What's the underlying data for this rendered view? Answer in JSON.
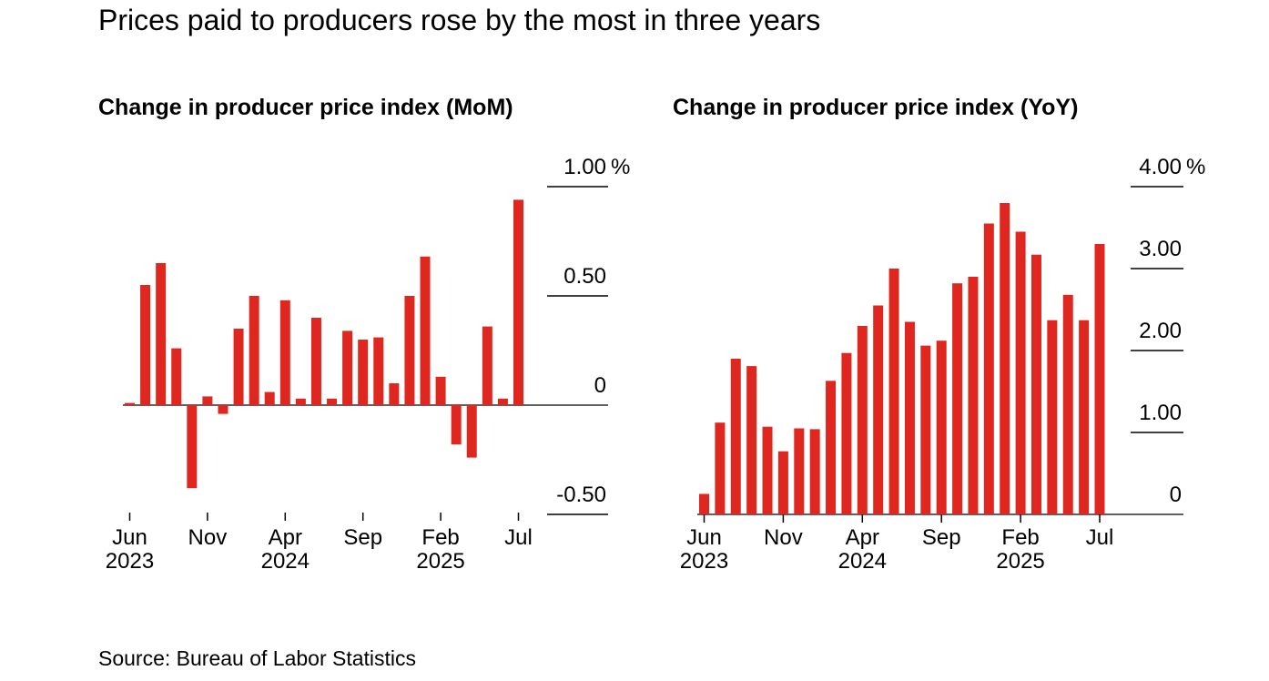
{
  "title": "Prices paid to producers rose by the most in three years",
  "source": "Source: Bureau of Labor Statistics",
  "colors": {
    "bar": "#e0271f",
    "axis": "#000000"
  },
  "chart_data": [
    {
      "type": "bar",
      "title": "Change in producer price index (MoM)",
      "unit": "%",
      "ylim": [
        -0.5,
        1.0
      ],
      "y_ticks": [
        {
          "value": 1.0,
          "label": "1.00"
        },
        {
          "value": 0.5,
          "label": "0.50"
        },
        {
          "value": 0,
          "label": "0"
        },
        {
          "value": -0.5,
          "label": "-0.50"
        }
      ],
      "categories": [
        "Jun 2023",
        "Jul 2023",
        "Aug 2023",
        "Sep 2023",
        "Oct 2023",
        "Nov 2023",
        "Dec 2023",
        "Jan 2024",
        "Feb 2024",
        "Mar 2024",
        "Apr 2024",
        "May 2024",
        "Jun 2024",
        "Jul 2024",
        "Aug 2024",
        "Sep 2024",
        "Oct 2024",
        "Nov 2024",
        "Dec 2024",
        "Jan 2025",
        "Feb 2025",
        "Mar 2025",
        "Apr 2025",
        "May 2025",
        "Jun 2025",
        "Jul 2025"
      ],
      "values": [
        0.01,
        0.55,
        0.65,
        0.26,
        -0.38,
        0.04,
        -0.04,
        0.35,
        0.5,
        0.06,
        0.48,
        0.03,
        0.4,
        0.03,
        0.34,
        0.3,
        0.31,
        0.1,
        0.5,
        0.68,
        0.13,
        -0.18,
        -0.24,
        0.36,
        0.03,
        0.94
      ],
      "x_ticks": [
        {
          "index": 0,
          "month": "Jun",
          "year": "2023"
        },
        {
          "index": 5,
          "month": "Nov",
          "year": ""
        },
        {
          "index": 10,
          "month": "Apr",
          "year": "2024"
        },
        {
          "index": 15,
          "month": "Sep",
          "year": ""
        },
        {
          "index": 20,
          "month": "Feb",
          "year": "2025"
        },
        {
          "index": 25,
          "month": "Jul",
          "year": ""
        }
      ]
    },
    {
      "type": "bar",
      "title": "Change in producer price index (YoY)",
      "unit": "%",
      "ylim": [
        0,
        4.0
      ],
      "y_ticks": [
        {
          "value": 4.0,
          "label": "4.00"
        },
        {
          "value": 3.0,
          "label": "3.00"
        },
        {
          "value": 2.0,
          "label": "2.00"
        },
        {
          "value": 1.0,
          "label": "1.00"
        },
        {
          "value": 0,
          "label": "0"
        }
      ],
      "categories": [
        "Jun 2023",
        "Jul 2023",
        "Aug 2023",
        "Sep 2023",
        "Oct 2023",
        "Nov 2023",
        "Dec 2023",
        "Jan 2024",
        "Feb 2024",
        "Mar 2024",
        "Apr 2024",
        "May 2024",
        "Jun 2024",
        "Jul 2024",
        "Aug 2024",
        "Sep 2024",
        "Oct 2024",
        "Nov 2024",
        "Dec 2024",
        "Jan 2025",
        "Feb 2025",
        "Mar 2025",
        "Apr 2025",
        "May 2025",
        "Jun 2025",
        "Jul 2025"
      ],
      "values": [
        0.25,
        1.12,
        1.9,
        1.81,
        1.07,
        0.77,
        1.05,
        1.04,
        1.63,
        1.97,
        2.3,
        2.55,
        3.0,
        2.35,
        2.06,
        2.12,
        2.82,
        2.9,
        3.55,
        3.8,
        3.45,
        3.17,
        2.37,
        2.68,
        2.37,
        3.3
      ],
      "x_ticks": [
        {
          "index": 0,
          "month": "Jun",
          "year": "2023"
        },
        {
          "index": 5,
          "month": "Nov",
          "year": ""
        },
        {
          "index": 10,
          "month": "Apr",
          "year": "2024"
        },
        {
          "index": 15,
          "month": "Sep",
          "year": ""
        },
        {
          "index": 20,
          "month": "Feb",
          "year": "2025"
        },
        {
          "index": 25,
          "month": "Jul",
          "year": ""
        }
      ]
    }
  ]
}
